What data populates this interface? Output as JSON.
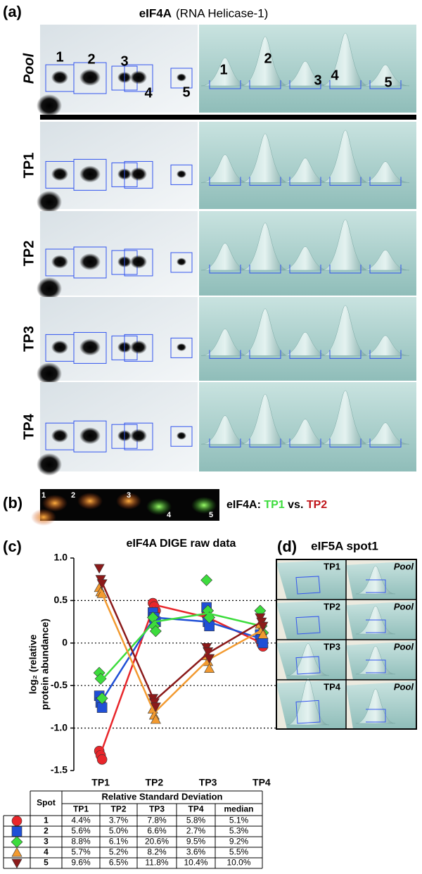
{
  "labels": {
    "a": "(a)",
    "b": "(b)",
    "c": "(c)",
    "d": "(d)"
  },
  "panel_a": {
    "title": "eIF4A",
    "subtitle": "(RNA Helicase-1)",
    "rows": [
      "Pool",
      "TP1",
      "TP2",
      "TP3",
      "TP4"
    ],
    "spots": [
      "1",
      "2",
      "3",
      "4",
      "5"
    ]
  },
  "panel_b": {
    "caption": "eIF4A:",
    "tp1": "TP1",
    "vs": "vs.",
    "tp2": "TP2"
  },
  "chart_data": {
    "type": "line",
    "title": "eIF4A DIGE raw data",
    "ylabel": [
      "log₂ (relative",
      "protein abundance)"
    ],
    "categories": [
      "TP1",
      "TP2",
      "TP3",
      "TP4"
    ],
    "ylim": [
      -1.5,
      1.0
    ],
    "yticks": [
      {
        "value": 1.0,
        "label": "1.0"
      },
      0.5,
      0,
      -0.5,
      {
        "value": -1.0,
        "label": "-1.0"
      },
      -1.5
    ],
    "grid": "dotted",
    "series": [
      {
        "name": "1",
        "color": "#e8262b",
        "marker": "circle",
        "values": [
          -1.3,
          0.45,
          0.3,
          0.0
        ],
        "points": [
          [
            -1.27,
            -1.32,
            -1.37
          ],
          [
            0.47,
            0.43,
            0.38
          ],
          [
            0.33,
            0.28,
            0.22
          ],
          [
            0.03,
            -0.01,
            -0.04
          ]
        ]
      },
      {
        "name": "2",
        "color": "#1f4fd6",
        "marker": "square",
        "values": [
          -0.7,
          0.3,
          0.25,
          0.05
        ],
        "points": [
          [
            -0.62,
            -0.7,
            -0.76
          ],
          [
            0.36,
            0.3,
            0.25
          ],
          [
            0.42,
            0.25,
            0.2
          ],
          [
            0.1,
            0.05,
            0.0
          ]
        ]
      },
      {
        "name": "3",
        "color": "#3ddc3d",
        "marker": "diamond",
        "values": [
          -0.45,
          0.25,
          0.35,
          0.2
        ],
        "points": [
          [
            -0.35,
            -0.42,
            -0.65
          ],
          [
            0.3,
            0.2,
            0.14
          ],
          [
            0.74,
            0.38,
            0.3
          ],
          [
            0.38,
            0.2,
            0.12
          ]
        ]
      },
      {
        "name": "4",
        "color": "#f29a30",
        "marker": "triangle-up",
        "values": [
          0.62,
          -0.82,
          -0.2,
          0.15
        ],
        "points": [
          [
            0.65,
            0.6,
            0.58
          ],
          [
            -0.78,
            -0.85,
            -0.9
          ],
          [
            -0.15,
            -0.22,
            -0.3
          ],
          [
            0.22,
            0.15,
            0.1
          ]
        ]
      },
      {
        "name": "5",
        "color": "#8b1a1a",
        "marker": "triangle-down",
        "values": [
          0.75,
          -0.68,
          -0.12,
          0.25
        ],
        "points": [
          [
            0.88,
            0.75,
            0.7
          ],
          [
            -0.65,
            -0.7,
            -0.75
          ],
          [
            -0.05,
            -0.1,
            -0.18
          ],
          [
            0.3,
            0.25,
            0.2
          ]
        ]
      }
    ]
  },
  "table": {
    "spot_header": "Spot",
    "group_header": "Relative Standard Deviation",
    "columns": [
      "TP1",
      "TP2",
      "TP3",
      "TP4",
      "median"
    ],
    "rows": [
      [
        "4.4%",
        "3.7%",
        "7.8%",
        "5.8%",
        "5.1%"
      ],
      [
        "5.6%",
        "5.0%",
        "6.6%",
        "2.7%",
        "5.3%"
      ],
      [
        "8.8%",
        "6.1%",
        "20.6%",
        "9.5%",
        "9.2%"
      ],
      [
        "5.7%",
        "5.2%",
        "8.2%",
        "3.6%",
        "5.5%"
      ],
      [
        "9.6%",
        "6.5%",
        "11.8%",
        "10.4%",
        "10.0%"
      ]
    ]
  },
  "panel_d": {
    "title": "eIF5A spot1",
    "rows": [
      {
        "left": "TP1",
        "right": "Pool"
      },
      {
        "left": "TP2",
        "right": "Pool"
      },
      {
        "left": "TP3",
        "right": "Pool"
      },
      {
        "left": "TP4",
        "right": "Pool"
      }
    ]
  }
}
